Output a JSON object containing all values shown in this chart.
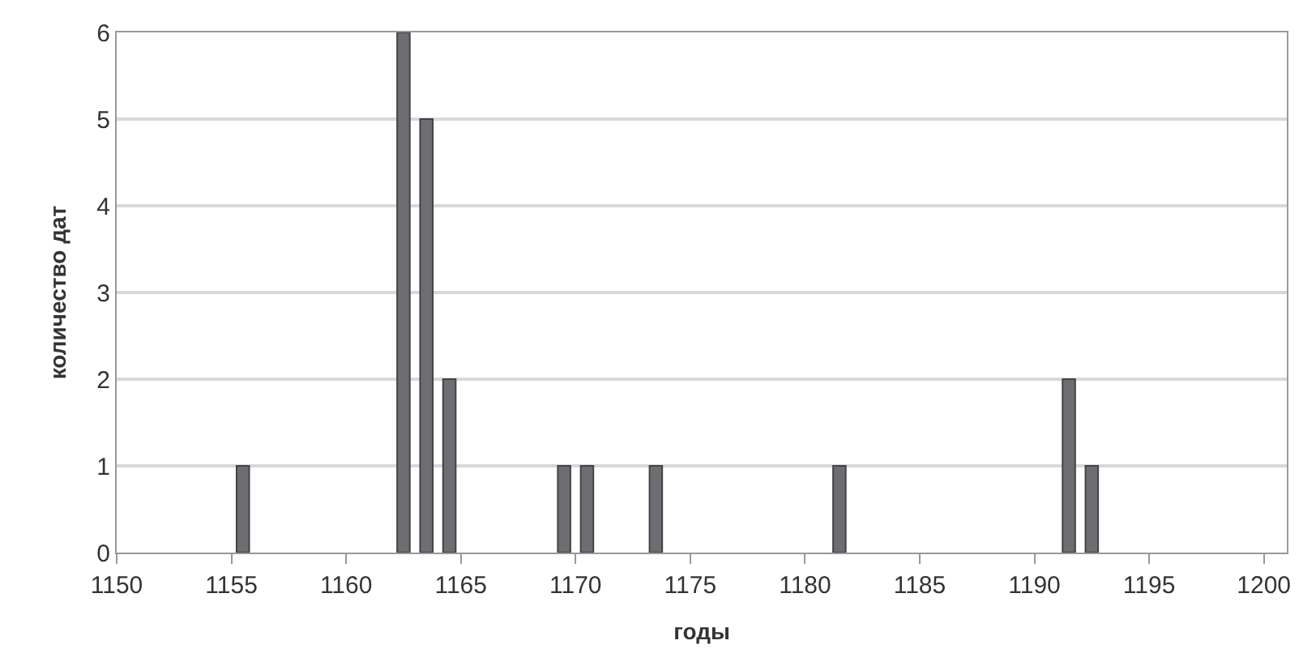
{
  "chart_data": {
    "type": "bar",
    "xlabel": "годы",
    "ylabel": "количество дат",
    "x": [
      1155.5,
      1162.5,
      1163.5,
      1164.5,
      1169.5,
      1170.5,
      1173.5,
      1181.5,
      1191.5,
      1192.5
    ],
    "values": [
      1,
      6,
      5,
      2,
      1,
      1,
      1,
      1,
      2,
      1
    ],
    "color": "#6e6e72",
    "xlim": [
      1150,
      1201
    ],
    "xticks": [
      1150,
      1155,
      1160,
      1165,
      1170,
      1175,
      1180,
      1185,
      1190,
      1195,
      1200
    ],
    "ylim": [
      0,
      6
    ],
    "yticks": [
      0,
      1,
      2,
      3,
      4,
      5,
      6
    ],
    "grid": "y"
  }
}
